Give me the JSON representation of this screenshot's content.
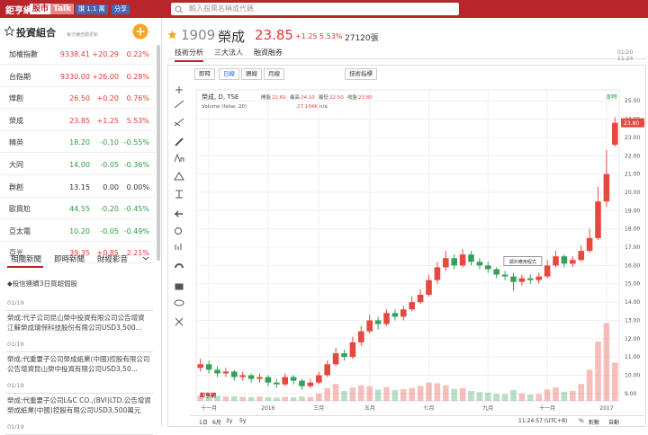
{
  "header": {
    "logo": "鉅亨網",
    "tag1": "股市",
    "tag2": "Talk",
    "like": "讚 1.1 萬",
    "share": "分享",
    "search_placeholder": "輸入股票名稱或代碼"
  },
  "portfolio": {
    "title": "投資組合",
    "note": "每分鐘自動更新",
    "rows": [
      [
        "加權指數",
        "9338.41",
        "+20.29",
        "0.22%"
      ],
      [
        "台指期",
        "9330.00",
        "+26.00",
        "0.28%"
      ],
      [
        "燁創",
        "26.50",
        "+0.20",
        "0.76%"
      ],
      [
        "榮成",
        "23.85",
        "+1.25",
        "5.53%"
      ],
      [
        "精英",
        "18.20",
        "-0.10",
        "-0.55%"
      ],
      [
        "大同",
        "14.00",
        "-0.05",
        "-0.36%"
      ],
      [
        "群創",
        "13.15",
        "0.00",
        "0.00%"
      ],
      [
        "歐買尬",
        "44.55",
        "-0.20",
        "-0.45%"
      ],
      [
        "亞太電",
        "10.20",
        "-0.05",
        "-0.49%"
      ],
      [
        "亞光",
        "39.35",
        "+0.85",
        "2.21%"
      ]
    ]
  },
  "news": {
    "tabs": [
      "相關新聞",
      "即時新聞",
      "財經影音"
    ],
    "items": [
      {
        "title": "◆投信連續3日買超個股",
        "date": "01/19"
      },
      {
        "title": "榮成:代子公司昆山榮中投資有限公司公告增資江蘇榮成環保科技股份有限公司USD3,500...",
        "date": "01/19"
      },
      {
        "title": "榮成:代重要子公司榮成紙業(中國)控股有限公司公告增資昆山榮中投資有限公司USD3,50...",
        "date": "01/19"
      },
      {
        "title": "榮成:代重要子公司L&C CO.,(BVI)LTD.公告增資榮成紙業(中國)控股有限公司USD3,500萬元",
        "date": "01/19"
      }
    ]
  },
  "quote": {
    "code": "1909",
    "name": "榮成",
    "price": "23.85",
    "change": "+1.25",
    "pct": "5.53%",
    "volume": "27120張"
  },
  "tabs": [
    "技術分析",
    "三大法人",
    "融資融券"
  ],
  "time": "01/20 11:24",
  "toolbar": [
    "即時",
    "日線",
    "週線",
    "月線",
    "技術指標"
  ],
  "chart_data": {
    "type": "candlestick",
    "title": "榮成, D, TSE",
    "ohlc_legend": [
      {
        "label": "開盤",
        "value": "22.60"
      },
      {
        "label": "最高",
        "value": "24.10"
      },
      {
        "label": "最低",
        "value": "22.50"
      },
      {
        "label": "收盤",
        "value": "23.80"
      }
    ],
    "volume_legend": {
      "name": "Volume (false, 20)",
      "value": "27.104K",
      "extra": "n/a"
    },
    "realtime_label": "即時",
    "annotation": "鄰外應用程式",
    "watermark": "鉅亨網",
    "categories": [
      null,
      "十一月",
      null,
      null,
      null,
      null,
      null,
      null,
      "2016",
      null,
      null,
      null,
      null,
      null,
      "三月",
      null,
      null,
      null,
      null,
      null,
      "五月",
      null,
      null,
      null,
      null,
      null,
      null,
      "七月",
      null,
      null,
      null,
      null,
      null,
      null,
      "九月",
      null,
      null,
      null,
      null,
      null,
      null,
      "十一月",
      null,
      null,
      null,
      null,
      null,
      null,
      "2017",
      null
    ],
    "open": [
      10.4,
      10.6,
      10.3,
      10.1,
      10.2,
      9.9,
      10.0,
      9.8,
      9.9,
      9.6,
      9.5,
      9.9,
      9.7,
      9.4,
      9.6,
      10.0,
      10.6,
      11.2,
      11.0,
      11.8,
      12.4,
      13.0,
      12.8,
      13.4,
      13.2,
      13.6,
      14.0,
      14.4,
      15.2,
      15.9,
      16.4,
      16.0,
      16.6,
      16.2,
      16.0,
      15.8,
      15.5,
      15.4,
      15.1,
      15.3,
      15.2,
      15.4,
      16.0,
      16.5,
      16.1,
      16.3,
      16.8,
      17.5,
      19.5,
      22.6
    ],
    "high": [
      10.9,
      10.8,
      10.5,
      10.4,
      10.3,
      10.2,
      10.1,
      10.1,
      10.0,
      9.8,
      10.1,
      10.0,
      9.8,
      9.8,
      10.2,
      10.8,
      11.5,
      11.4,
      12.1,
      12.7,
      13.3,
      13.2,
      13.6,
      13.6,
      13.8,
      14.3,
      14.7,
      15.5,
      16.2,
      16.8,
      16.6,
      16.9,
      16.8,
      16.4,
      16.2,
      15.9,
      15.7,
      15.6,
      15.5,
      15.5,
      15.6,
      16.3,
      16.8,
      16.6,
      16.5,
      17.1,
      18.0,
      20.3,
      22.3,
      24.1
    ],
    "low": [
      10.2,
      10.1,
      9.9,
      9.9,
      9.7,
      9.7,
      9.6,
      9.6,
      9.4,
      9.3,
      9.4,
      9.5,
      9.2,
      9.3,
      9.5,
      9.9,
      10.5,
      10.8,
      10.9,
      11.6,
      12.3,
      12.5,
      12.7,
      13.0,
      13.0,
      13.5,
      13.9,
      14.3,
      15.0,
      15.7,
      15.8,
      15.9,
      16.0,
      15.8,
      15.6,
      15.3,
      15.2,
      14.6,
      14.9,
      15.0,
      15.0,
      15.3,
      15.9,
      15.9,
      15.9,
      16.2,
      16.7,
      17.4,
      19.2,
      22.5
    ],
    "close": [
      10.6,
      10.3,
      10.1,
      10.2,
      9.9,
      10.0,
      9.8,
      9.9,
      9.6,
      9.5,
      9.9,
      9.7,
      9.4,
      9.6,
      10.0,
      10.6,
      11.2,
      11.0,
      11.8,
      12.4,
      13.0,
      12.8,
      13.4,
      13.2,
      13.6,
      14.0,
      14.4,
      15.2,
      15.9,
      16.4,
      16.0,
      16.6,
      16.2,
      16.0,
      15.8,
      15.5,
      15.4,
      15.1,
      15.3,
      15.2,
      15.4,
      16.0,
      16.5,
      16.1,
      16.3,
      16.8,
      17.5,
      19.5,
      21.0,
      23.8
    ],
    "volume": [
      3800,
      4200,
      3500,
      3000,
      3200,
      2800,
      2600,
      3000,
      2500,
      2200,
      2800,
      2400,
      3100,
      2700,
      5200,
      9000,
      12000,
      7000,
      9500,
      11000,
      10500,
      8000,
      9800,
      7500,
      8200,
      9000,
      10500,
      13000,
      12500,
      11000,
      8500,
      9000,
      7000,
      6200,
      5800,
      5000,
      4800,
      7600,
      5200,
      4500,
      4800,
      8000,
      9500,
      6500,
      7000,
      12000,
      22000,
      42000,
      55000,
      27104
    ],
    "volume_lim": [
      0,
      70000
    ],
    "up_color": "#e8473f",
    "down_color": "#35a05a",
    "ylim": [
      8.6,
      25.6
    ],
    "yticks": [
      {
        "value": 9,
        "label": "9.00"
      },
      {
        "value": 10,
        "label": "10.00"
      },
      {
        "value": 11,
        "label": "11.00"
      },
      {
        "value": 12,
        "label": "12.00"
      },
      {
        "value": 13,
        "label": "13.00"
      },
      {
        "value": 14,
        "label": "14.00"
      },
      {
        "value": 15,
        "label": "15.00"
      },
      {
        "value": 16,
        "label": "16.00"
      },
      {
        "value": 17,
        "label": "17.00"
      },
      {
        "value": 18,
        "label": "18.00"
      },
      {
        "value": 19,
        "label": "19.00"
      },
      {
        "value": 20,
        "label": "20.00"
      },
      {
        "value": 21,
        "label": "21.00"
      },
      {
        "value": 22,
        "label": "22.00"
      },
      {
        "value": 23,
        "label": "23.00"
      },
      {
        "value": 24,
        "label": "24.00"
      },
      {
        "value": 25,
        "label": "25.00"
      }
    ],
    "grid": true,
    "ranges": [
      "1日",
      "6月",
      "3y",
      "5y"
    ],
    "status": [
      "11:24:57 (UTC+8)",
      "%",
      "對數",
      "自動"
    ]
  }
}
